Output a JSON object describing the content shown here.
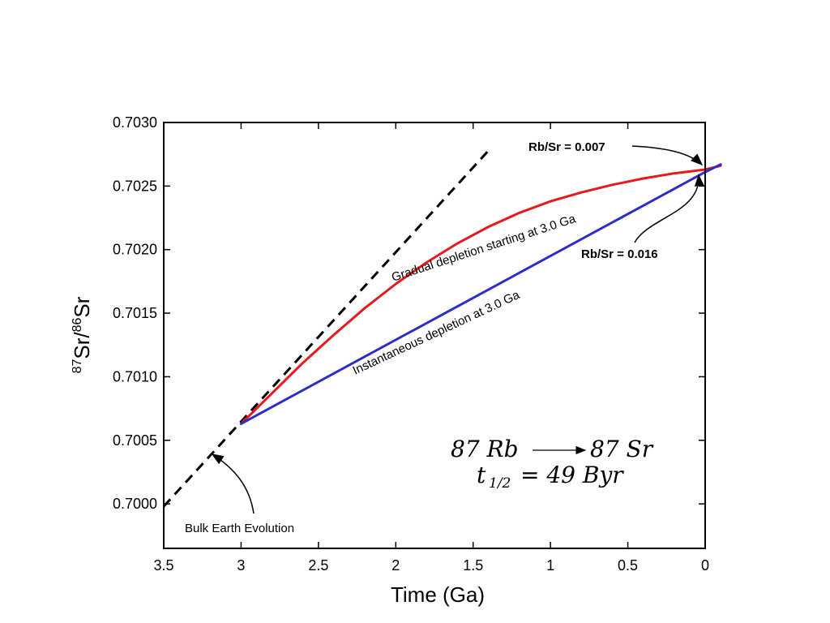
{
  "chart_data": {
    "type": "line",
    "xlabel": "Time (Ga)",
    "ylabel_iso_top_sup": "87",
    "ylabel_iso_top": "Sr",
    "ylabel_sep": "/",
    "ylabel_iso_bot_sup": "86",
    "ylabel_iso_bot": "Sr",
    "xlim": [
      3.5,
      0
    ],
    "ylim": [
      0.69965,
      0.703
    ],
    "x_ticks": [
      3.5,
      3,
      2.5,
      2,
      1.5,
      1,
      0.5,
      0
    ],
    "x_tick_labels": [
      "3.5",
      "3",
      "2.5",
      "2",
      "1.5",
      "1",
      "0.5",
      "0"
    ],
    "y_ticks": [
      0.7,
      0.7005,
      0.701,
      0.7015,
      0.702,
      0.7025,
      0.703
    ],
    "y_tick_labels": [
      "0.7000",
      "0.7005",
      "0.7010",
      "0.7015",
      "0.7020",
      "0.7025",
      "0.7030"
    ],
    "grid": false,
    "series": [
      {
        "name": "Bulk Earth Evolution",
        "color": "#000000",
        "style": "dashed",
        "x": [
          3.5,
          1.4
        ],
        "y": [
          0.69998,
          0.70278
        ]
      },
      {
        "name": "Gradual depletion starting at 3.0 Ga",
        "color": "#e41a1c",
        "style": "solid",
        "x": [
          3.0,
          2.8,
          2.6,
          2.4,
          2.2,
          2.0,
          1.8,
          1.6,
          1.4,
          1.2,
          1.0,
          0.8,
          0.6,
          0.4,
          0.2,
          0.0,
          -0.1
        ],
        "y": [
          0.70063,
          0.70087,
          0.70111,
          0.70133,
          0.70154,
          0.70173,
          0.7019,
          0.70205,
          0.70218,
          0.70229,
          0.70238,
          0.70245,
          0.70251,
          0.70256,
          0.7026,
          0.70263,
          0.70266
        ]
      },
      {
        "name": "Instantaneous depletion at 3.0 Ga",
        "color": "#2d2dc8",
        "style": "solid",
        "x": [
          3.0,
          0.0,
          -0.1
        ],
        "y": [
          0.70063,
          0.70261,
          0.70267
        ]
      }
    ],
    "annotations": {
      "gradual_label": "Gradual depletion starting at 3.0 Ga",
      "instant_label": "Instantaneous depletion at 3.0 Ga",
      "rbsr_low": "Rb/Sr = 0.007",
      "rbsr_high": "Rb/Sr = 0.016",
      "bulk_label": "Bulk Earth Evolution",
      "decay_parent": "87 Rb",
      "decay_daughter": "87 Sr",
      "half_life_prefix": "t",
      "half_life_sub": "1/2",
      "half_life_value": "= 49 Byr"
    }
  }
}
